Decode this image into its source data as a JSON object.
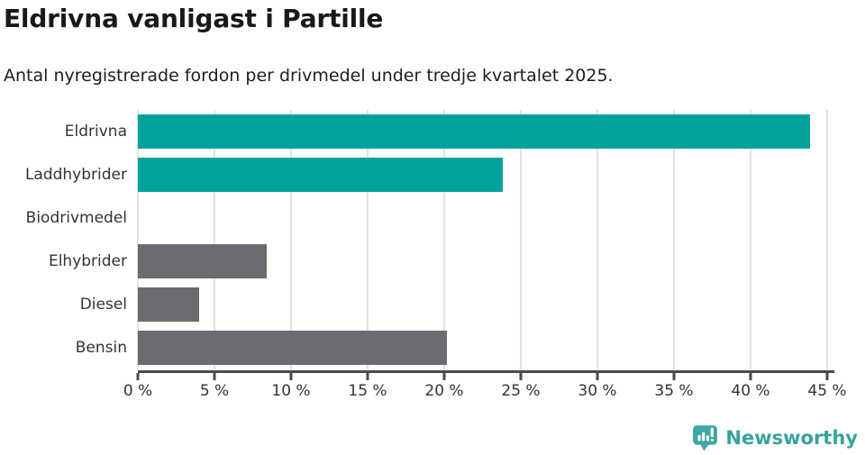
{
  "header": {
    "title": "Eldrivna vanligast i Partille",
    "subtitle": "Antal nyregistrerade fordon per drivmedel under tredje kvartalet 2025."
  },
  "chart_data": {
    "type": "bar",
    "orientation": "horizontal",
    "title": "Eldrivna vanligast i Partille",
    "subtitle": "Antal nyregistrerade fordon per drivmedel under tredje kvartalet 2025.",
    "categories": [
      "Eldrivna",
      "Laddhybrider",
      "Biodrivmedel",
      "Elhybrider",
      "Diesel",
      "Bensin"
    ],
    "values": [
      43.9,
      23.8,
      0,
      8.4,
      4,
      20.2
    ],
    "unit": "%",
    "xlabel": "",
    "ylabel": "",
    "xlim": [
      0,
      45
    ],
    "xticks": [
      0,
      5,
      10,
      15,
      20,
      25,
      30,
      35,
      40,
      45
    ],
    "xtick_labels": [
      "0 %",
      "5 %",
      "10 %",
      "15 %",
      "20 %",
      "25 %",
      "30 %",
      "35 %",
      "40 %",
      "45 %"
    ],
    "bar_colors": [
      "#00a39b",
      "#00a39b",
      "#00a39b",
      "#6b6b71",
      "#6b6b71",
      "#6b6b71"
    ],
    "grid": true,
    "legend": false
  },
  "colors": {
    "accent_teal": "#00a39b",
    "neutral_gray": "#6b6b71",
    "gridline": "#e2e2e2",
    "axis": "#4a4a4d",
    "logo_teal": "#3ea7a1",
    "logo_text_teal": "#38a39d"
  },
  "footer": {
    "brand": "Newsworthy"
  }
}
